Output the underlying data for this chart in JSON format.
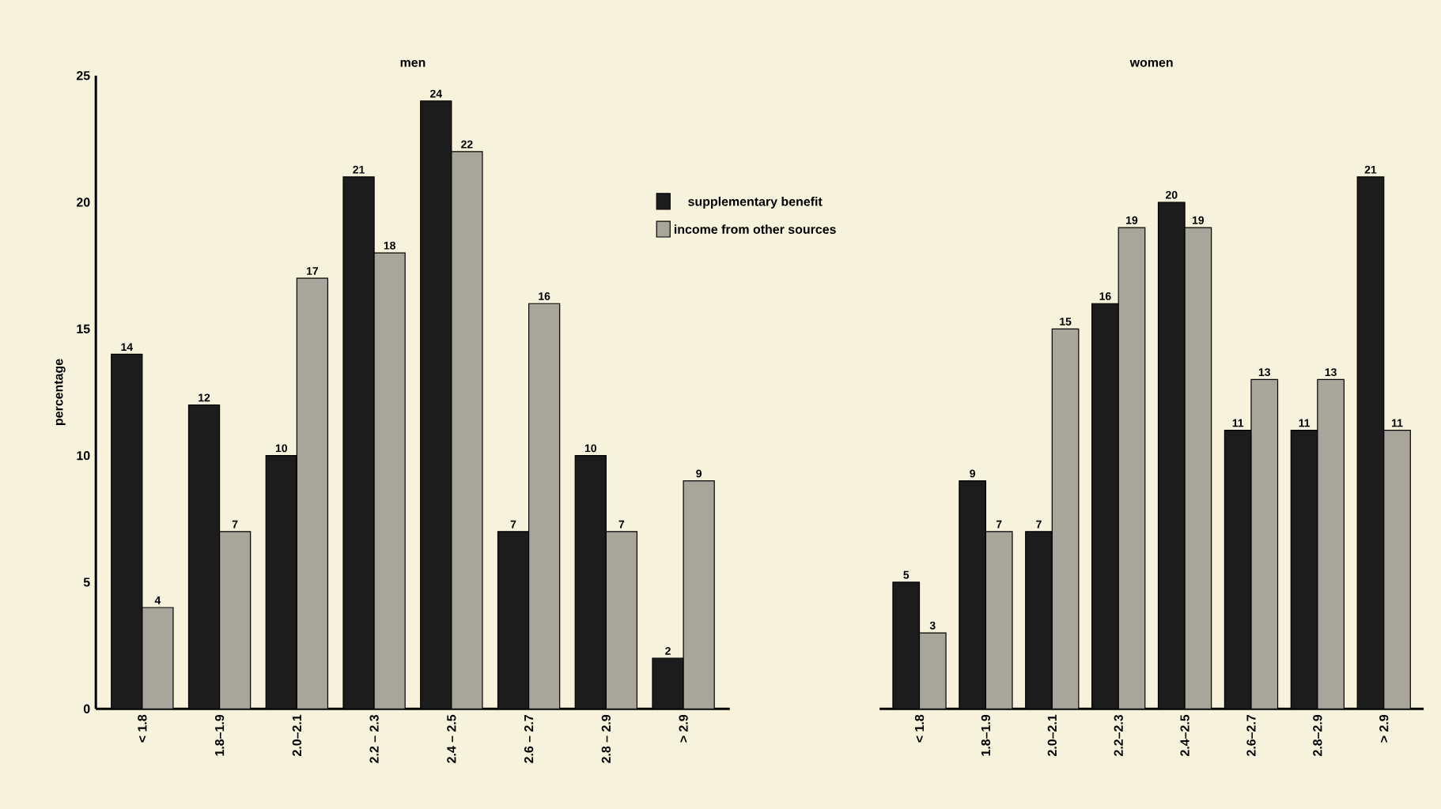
{
  "chart_data": [
    {
      "type": "bar",
      "title": "men",
      "ylabel": "percentage",
      "categories": [
        "< 1.8",
        "1.8–1.9",
        "2.0–2.1",
        "2.2 – 2.3",
        "2.4 – 2.5",
        "2.6 – 2.7",
        "2.8 – 2.9",
        "> 2.9"
      ],
      "series": [
        {
          "color": "#1c1c1c",
          "values": [
            14,
            12,
            10,
            21,
            24,
            7,
            10,
            2
          ]
        },
        {
          "color": "#a8a59a",
          "values": [
            4,
            7,
            17,
            18,
            22,
            16,
            7,
            9
          ]
        }
      ],
      "ylim": [
        0,
        25
      ],
      "yticks": [
        0,
        5,
        10,
        15,
        20,
        25
      ],
      "data_labels": true,
      "grid": false,
      "legend": false
    },
    {
      "type": "bar",
      "title": "women",
      "categories": [
        "< 1.8",
        "1.8–1.9",
        "2.0–2.1",
        "2.2–2.3",
        "2.4–2.5",
        "2.6–2.7",
        "2.8–2.9",
        "> 2.9"
      ],
      "series": [
        {
          "name": "supplementary benefit",
          "color": "#1c1c1c",
          "values": [
            5,
            9,
            7,
            16,
            20,
            11,
            11,
            21
          ]
        },
        {
          "name": "income from other sources",
          "color": "#a8a59a",
          "values": [
            3,
            7,
            15,
            19,
            19,
            13,
            13,
            11
          ]
        }
      ],
      "ylim": [
        0,
        25
      ],
      "tick_labels": "x",
      "data_labels": true,
      "grid": false,
      "legend": "top left"
    }
  ]
}
